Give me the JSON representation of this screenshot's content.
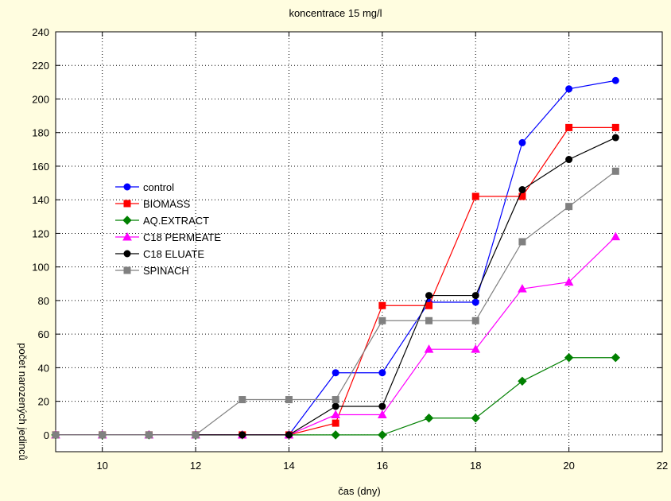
{
  "chart_data": {
    "type": "line",
    "title": "koncentrace 15 mg/l",
    "xlabel": "čas (dny)",
    "ylabel": "počet narozených jedinců",
    "xlim": [
      9,
      22
    ],
    "ylim": [
      -10,
      240
    ],
    "xticks": [
      10,
      12,
      14,
      16,
      18,
      20,
      22
    ],
    "yticks": [
      0,
      20,
      40,
      60,
      80,
      100,
      120,
      140,
      160,
      180,
      200,
      220,
      240
    ],
    "grid": true,
    "legend_position": "left",
    "series": [
      {
        "name": "control",
        "color": "#0000ff",
        "marker": "circle",
        "x": [
          9,
          10,
          11,
          12,
          13,
          14,
          15,
          16,
          17,
          18,
          19,
          20,
          21
        ],
        "y": [
          0,
          0,
          0,
          0,
          0,
          0,
          37,
          37,
          79,
          79,
          174,
          206,
          211
        ]
      },
      {
        "name": "BIOMASS",
        "color": "#ff0000",
        "marker": "square",
        "x": [
          9,
          10,
          11,
          12,
          13,
          14,
          15,
          16,
          17,
          18,
          19,
          20,
          21
        ],
        "y": [
          0,
          0,
          0,
          0,
          0,
          0,
          7,
          77,
          77,
          142,
          142,
          183,
          183
        ]
      },
      {
        "name": "AQ.EXTRACT",
        "color": "#008000",
        "marker": "diamond",
        "x": [
          9,
          10,
          11,
          12,
          13,
          14,
          15,
          16,
          17,
          18,
          19,
          20,
          21
        ],
        "y": [
          0,
          0,
          0,
          0,
          0,
          0,
          0,
          0,
          10,
          10,
          32,
          46,
          46
        ]
      },
      {
        "name": "C18 PERMEATE",
        "color": "#ff00ff",
        "marker": "triangle",
        "x": [
          9,
          10,
          11,
          12,
          13,
          14,
          15,
          16,
          17,
          18,
          19,
          20,
          21
        ],
        "y": [
          0,
          0,
          0,
          0,
          0,
          0,
          12,
          12,
          51,
          51,
          87,
          91,
          118
        ]
      },
      {
        "name": "C18 ELUATE",
        "color": "#000000",
        "marker": "circle",
        "x": [
          9,
          10,
          11,
          12,
          13,
          14,
          15,
          16,
          17,
          18,
          19,
          20,
          21
        ],
        "y": [
          0,
          0,
          0,
          0,
          0,
          0,
          17,
          17,
          83,
          83,
          146,
          164,
          177
        ]
      },
      {
        "name": "SPINACH",
        "color": "#808080",
        "marker": "square",
        "x": [
          9,
          10,
          11,
          12,
          13,
          14,
          15,
          16,
          17,
          18,
          19,
          20,
          21
        ],
        "y": [
          0,
          0,
          0,
          0,
          21,
          21,
          21,
          68,
          68,
          68,
          115,
          136,
          157
        ]
      }
    ]
  }
}
